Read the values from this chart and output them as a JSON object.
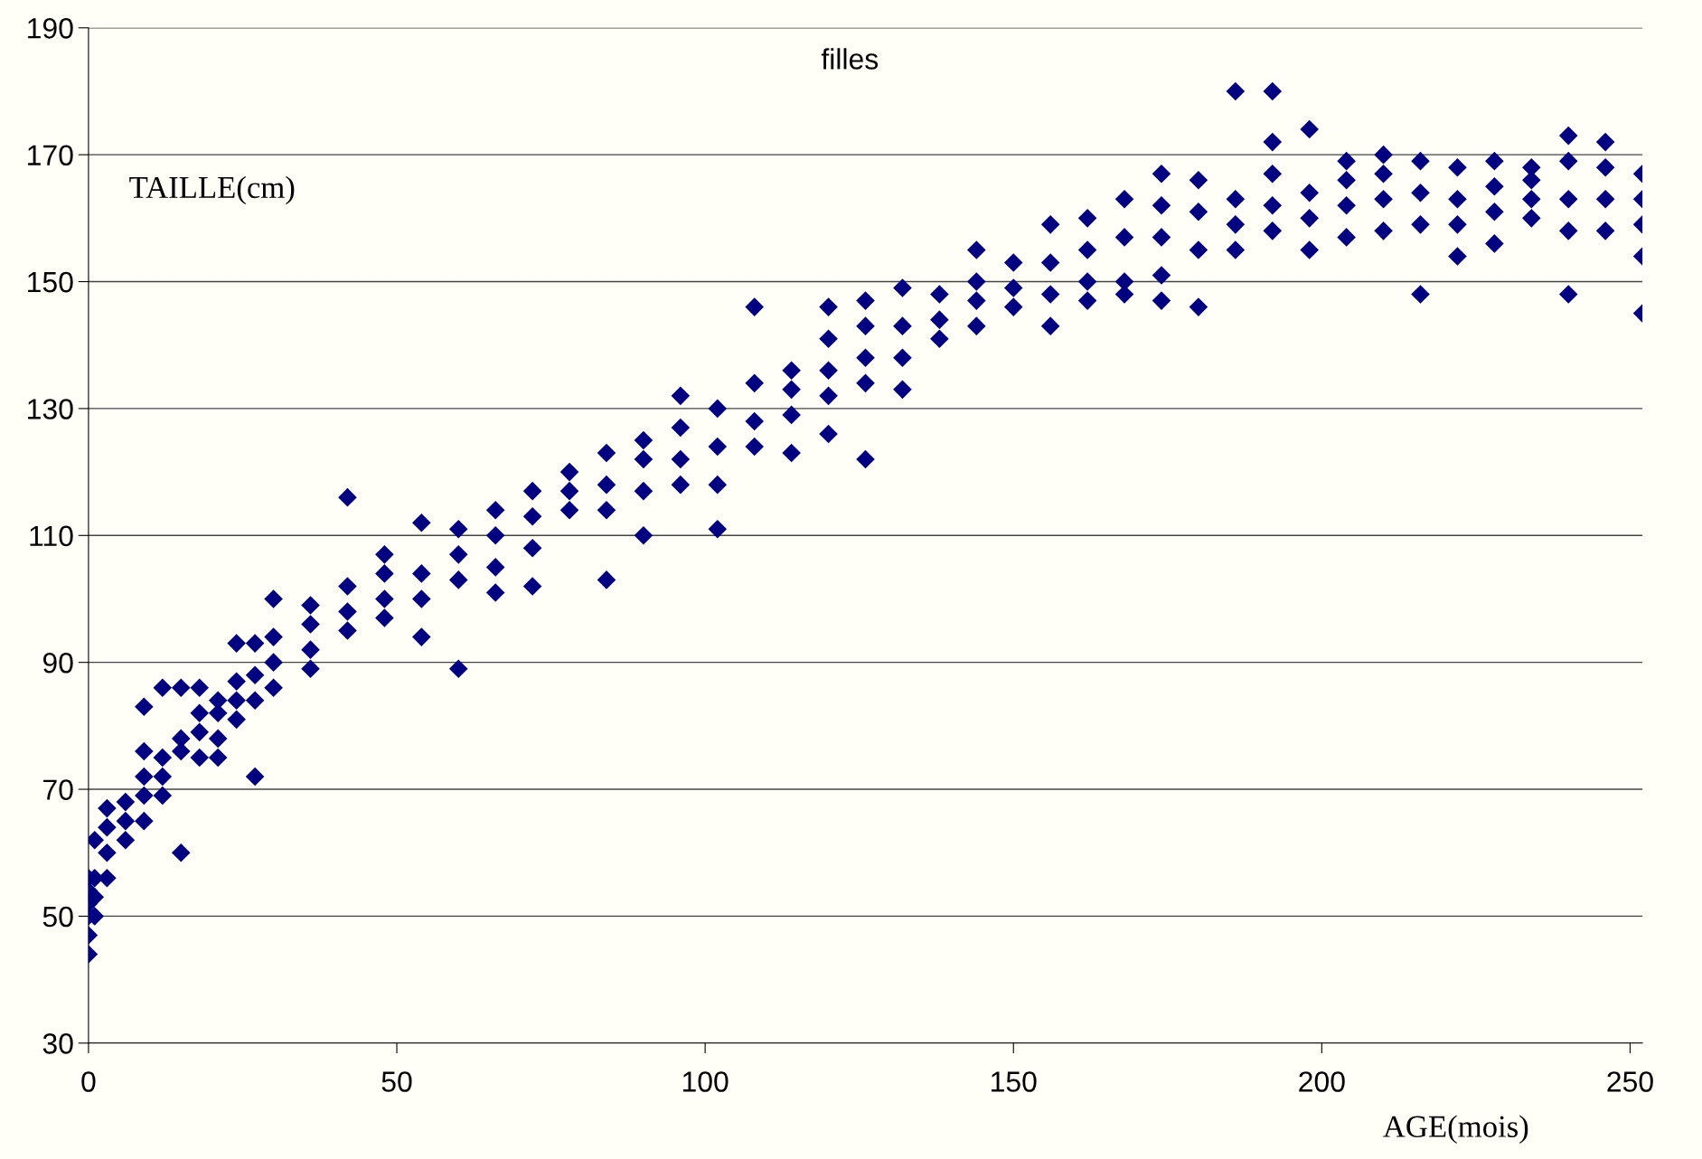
{
  "chart_data": {
    "type": "scatter",
    "title": "filles",
    "xlabel": "AGE(mois)",
    "ylabel": "TAILLE(cm)",
    "x": [
      0,
      0,
      0,
      0,
      0,
      0,
      1,
      1,
      1,
      1,
      3,
      3,
      3,
      3,
      6,
      6,
      6,
      9,
      9,
      9,
      9,
      9,
      12,
      12,
      12,
      12,
      15,
      15,
      15,
      15,
      18,
      18,
      18,
      18,
      21,
      21,
      21,
      21,
      24,
      24,
      24,
      24,
      27,
      27,
      27,
      27,
      30,
      30,
      30,
      30,
      36,
      36,
      36,
      36,
      42,
      42,
      42,
      42,
      48,
      48,
      48,
      48,
      54,
      54,
      54,
      54,
      60,
      60,
      60,
      60,
      66,
      66,
      66,
      66,
      72,
      72,
      72,
      72,
      78,
      78,
      78,
      84,
      84,
      84,
      84,
      90,
      90,
      90,
      90,
      96,
      96,
      96,
      96,
      102,
      102,
      102,
      102,
      108,
      108,
      108,
      108,
      114,
      114,
      114,
      114,
      120,
      120,
      120,
      120,
      120,
      126,
      126,
      126,
      126,
      126,
      132,
      132,
      132,
      132,
      138,
      138,
      138,
      144,
      144,
      144,
      144,
      150,
      150,
      150,
      156,
      156,
      156,
      156,
      162,
      162,
      162,
      162,
      168,
      168,
      168,
      168,
      174,
      174,
      174,
      174,
      174,
      180,
      180,
      180,
      180,
      186,
      186,
      186,
      186,
      192,
      192,
      192,
      192,
      192,
      198,
      198,
      198,
      198,
      204,
      204,
      204,
      204,
      210,
      210,
      210,
      210,
      216,
      216,
      216,
      216,
      222,
      222,
      222,
      222,
      228,
      228,
      228,
      228,
      234,
      234,
      234,
      234,
      240,
      240,
      240,
      240,
      240,
      246,
      246,
      246,
      246,
      252,
      252,
      252,
      252,
      252
    ],
    "values": [
      44,
      47,
      50,
      52,
      54,
      56,
      50,
      53,
      56,
      62,
      56,
      60,
      64,
      67,
      62,
      65,
      68,
      65,
      69,
      72,
      76,
      83,
      69,
      72,
      75,
      86,
      60,
      76,
      78,
      86,
      75,
      79,
      82,
      86,
      75,
      78,
      82,
      84,
      81,
      84,
      87,
      93,
      72,
      84,
      88,
      93,
      86,
      90,
      94,
      100,
      89,
      92,
      96,
      99,
      95,
      98,
      102,
      116,
      97,
      100,
      104,
      107,
      94,
      100,
      104,
      112,
      89,
      103,
      107,
      111,
      101,
      105,
      110,
      114,
      102,
      108,
      113,
      117,
      114,
      117,
      120,
      103,
      114,
      118,
      123,
      110,
      117,
      122,
      125,
      118,
      122,
      127,
      132,
      111,
      118,
      124,
      130,
      124,
      128,
      134,
      146,
      123,
      129,
      133,
      136,
      126,
      132,
      136,
      141,
      146,
      122,
      134,
      138,
      143,
      147,
      133,
      138,
      143,
      149,
      141,
      144,
      148,
      143,
      147,
      150,
      155,
      146,
      149,
      153,
      143,
      148,
      153,
      159,
      147,
      150,
      155,
      160,
      148,
      150,
      157,
      163,
      147,
      151,
      157,
      162,
      167,
      146,
      155,
      161,
      166,
      155,
      159,
      163,
      180,
      158,
      162,
      167,
      172,
      180,
      155,
      160,
      164,
      174,
      157,
      162,
      166,
      169,
      158,
      163,
      167,
      170,
      148,
      159,
      164,
      169,
      154,
      159,
      163,
      168,
      156,
      161,
      165,
      169,
      160,
      163,
      166,
      168,
      148,
      158,
      163,
      169,
      173,
      158,
      163,
      168,
      172,
      145,
      154,
      159,
      163,
      167
    ],
    "color": "#000080",
    "marker": "diamond",
    "grid": "y",
    "legend": false,
    "xlim": [
      0,
      252
    ],
    "ylim": [
      30,
      190
    ],
    "xticks": [
      0,
      50,
      100,
      150,
      200,
      250
    ],
    "yticks": [
      30,
      50,
      70,
      90,
      110,
      130,
      150,
      170,
      190
    ]
  }
}
